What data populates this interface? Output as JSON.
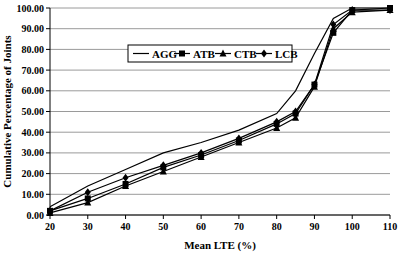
{
  "chart_data": {
    "type": "line",
    "x_label": "Mean LTE (%)",
    "y_label": "Cumulative Percentage of Joints",
    "x": [
      20,
      30,
      40,
      50,
      60,
      70,
      80,
      85,
      90,
      95,
      100,
      110
    ],
    "series": [
      {
        "name": "AGG",
        "color": "#000000",
        "marker": "none",
        "values": [
          4,
          14,
          22,
          30,
          35,
          41,
          49,
          60,
          78,
          95,
          100,
          100
        ]
      },
      {
        "name": "ATB",
        "color": "#000000",
        "marker": "square",
        "values": [
          2,
          8,
          15,
          23,
          29,
          36,
          44,
          49,
          63,
          88,
          99,
          100
        ]
      },
      {
        "name": "CTB",
        "color": "#000000",
        "marker": "triangle",
        "values": [
          1,
          6,
          14,
          21,
          28,
          35,
          42,
          47,
          62,
          90,
          98,
          99
        ]
      },
      {
        "name": "LCB",
        "color": "#000000",
        "marker": "diamond",
        "values": [
          2,
          11,
          18,
          24,
          30,
          37,
          45,
          50,
          63,
          92,
          99,
          99
        ]
      }
    ],
    "xlim": [
      20,
      110
    ],
    "xticks": [
      20,
      30,
      40,
      50,
      60,
      70,
      80,
      90,
      100,
      110
    ],
    "ylim": [
      0,
      100
    ],
    "yticks": [
      {
        "value": 0,
        "label": "0.00"
      },
      {
        "value": 10,
        "label": "10.00"
      },
      {
        "value": 20,
        "label": "20.00"
      },
      {
        "value": 30,
        "label": "30.00"
      },
      {
        "value": 40,
        "label": "40.00"
      },
      {
        "value": 50,
        "label": "50.00"
      },
      {
        "value": 60,
        "label": "60.00"
      },
      {
        "value": 70,
        "label": "70.00"
      },
      {
        "value": 80,
        "label": "80.00"
      },
      {
        "value": 90,
        "label": "90.00"
      },
      {
        "value": 100,
        "label": "100.00"
      }
    ],
    "grid": true,
    "legend": "top"
  }
}
